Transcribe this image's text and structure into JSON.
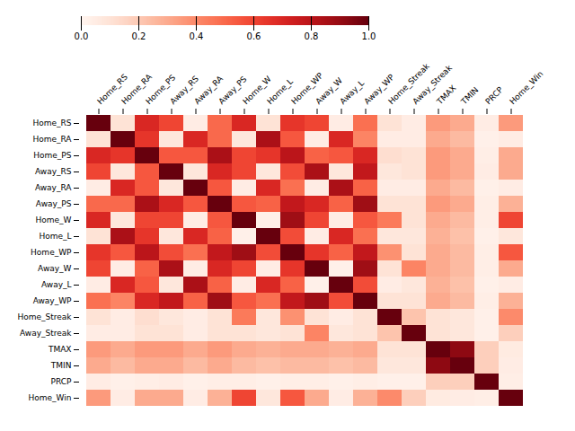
{
  "chart_data": {
    "type": "heatmap",
    "categories": [
      "Home_RS",
      "Home_RA",
      "Home_PS",
      "Away_RS",
      "Away_RA",
      "Away_PS",
      "Home_W",
      "Home_L",
      "Home_WP",
      "Away_W",
      "Away_L",
      "Away_WP",
      "Home_Streak",
      "Away_Streak",
      "TMAX",
      "TMIN",
      "PRCP",
      "Home_Win"
    ],
    "values": [
      [
        1.0,
        0.1,
        0.7,
        0.6,
        0.05,
        0.5,
        0.7,
        0.1,
        0.65,
        0.6,
        0.05,
        0.48,
        0.1,
        0.05,
        0.35,
        0.3,
        0.05,
        0.35
      ],
      [
        0.1,
        1.0,
        0.65,
        0.08,
        0.7,
        0.5,
        0.08,
        0.85,
        0.55,
        0.05,
        0.7,
        0.42,
        0.05,
        0.05,
        0.3,
        0.25,
        0.03,
        0.05
      ],
      [
        0.7,
        0.65,
        1.0,
        0.55,
        0.55,
        0.85,
        0.6,
        0.65,
        0.8,
        0.52,
        0.55,
        0.7,
        0.12,
        0.1,
        0.35,
        0.3,
        0.04,
        0.3
      ],
      [
        0.6,
        0.08,
        0.55,
        1.0,
        0.08,
        0.7,
        0.6,
        0.08,
        0.58,
        0.85,
        0.08,
        0.78,
        0.08,
        0.1,
        0.35,
        0.3,
        0.05,
        0.3
      ],
      [
        0.05,
        0.7,
        0.55,
        0.08,
        1.0,
        0.55,
        0.05,
        0.7,
        0.48,
        0.05,
        0.85,
        0.52,
        0.05,
        0.05,
        0.3,
        0.25,
        0.03,
        0.05
      ],
      [
        0.5,
        0.5,
        0.85,
        0.7,
        0.55,
        1.0,
        0.55,
        0.52,
        0.78,
        0.7,
        0.52,
        0.88,
        0.1,
        0.1,
        0.35,
        0.3,
        0.04,
        0.28
      ],
      [
        0.7,
        0.08,
        0.6,
        0.6,
        0.05,
        0.55,
        1.0,
        0.03,
        0.88,
        0.6,
        0.05,
        0.55,
        0.45,
        0.1,
        0.3,
        0.25,
        0.04,
        0.6
      ],
      [
        0.1,
        0.85,
        0.65,
        0.08,
        0.7,
        0.52,
        0.03,
        1.0,
        0.58,
        0.05,
        0.7,
        0.48,
        0.08,
        0.08,
        0.28,
        0.23,
        0.03,
        0.08
      ],
      [
        0.65,
        0.55,
        0.8,
        0.58,
        0.48,
        0.78,
        0.88,
        0.58,
        1.0,
        0.65,
        0.52,
        0.78,
        0.38,
        0.1,
        0.3,
        0.25,
        0.04,
        0.55
      ],
      [
        0.6,
        0.05,
        0.52,
        0.85,
        0.05,
        0.7,
        0.6,
        0.05,
        0.65,
        1.0,
        0.03,
        0.88,
        0.1,
        0.42,
        0.3,
        0.25,
        0.04,
        0.3
      ],
      [
        0.05,
        0.7,
        0.55,
        0.08,
        0.85,
        0.52,
        0.05,
        0.7,
        0.52,
        0.03,
        1.0,
        0.58,
        0.05,
        0.08,
        0.28,
        0.23,
        0.03,
        0.05
      ],
      [
        0.48,
        0.42,
        0.7,
        0.78,
        0.52,
        0.88,
        0.55,
        0.48,
        0.78,
        0.88,
        0.58,
        1.0,
        0.1,
        0.1,
        0.3,
        0.25,
        0.04,
        0.28
      ],
      [
        0.1,
        0.05,
        0.12,
        0.08,
        0.05,
        0.1,
        0.45,
        0.08,
        0.38,
        0.1,
        0.05,
        0.1,
        1.0,
        0.22,
        0.1,
        0.08,
        0.03,
        0.4
      ],
      [
        0.05,
        0.05,
        0.1,
        0.1,
        0.05,
        0.1,
        0.1,
        0.08,
        0.1,
        0.42,
        0.08,
        0.1,
        0.22,
        1.0,
        0.1,
        0.08,
        0.03,
        0.18
      ],
      [
        0.35,
        0.3,
        0.35,
        0.35,
        0.3,
        0.35,
        0.3,
        0.28,
        0.3,
        0.3,
        0.28,
        0.3,
        0.1,
        0.1,
        1.0,
        0.92,
        0.18,
        0.06
      ],
      [
        0.3,
        0.25,
        0.3,
        0.3,
        0.25,
        0.3,
        0.25,
        0.23,
        0.25,
        0.25,
        0.23,
        0.25,
        0.08,
        0.08,
        0.92,
        1.0,
        0.18,
        0.05
      ],
      [
        0.05,
        0.03,
        0.04,
        0.05,
        0.03,
        0.04,
        0.04,
        0.03,
        0.04,
        0.04,
        0.03,
        0.04,
        0.03,
        0.03,
        0.18,
        0.18,
        1.0,
        0.04
      ],
      [
        0.35,
        0.05,
        0.3,
        0.3,
        0.05,
        0.28,
        0.6,
        0.08,
        0.55,
        0.3,
        0.05,
        0.28,
        0.4,
        0.18,
        0.06,
        0.05,
        0.04,
        1.0
      ]
    ],
    "color": "Reds",
    "color_range": [
      0.0,
      1.0
    ],
    "color_ticks": [
      {
        "value": 0.0,
        "label": "0.0"
      },
      0.2,
      0.4,
      0.6,
      0.8,
      {
        "value": 1.0,
        "label": "1.0"
      }
    ]
  }
}
